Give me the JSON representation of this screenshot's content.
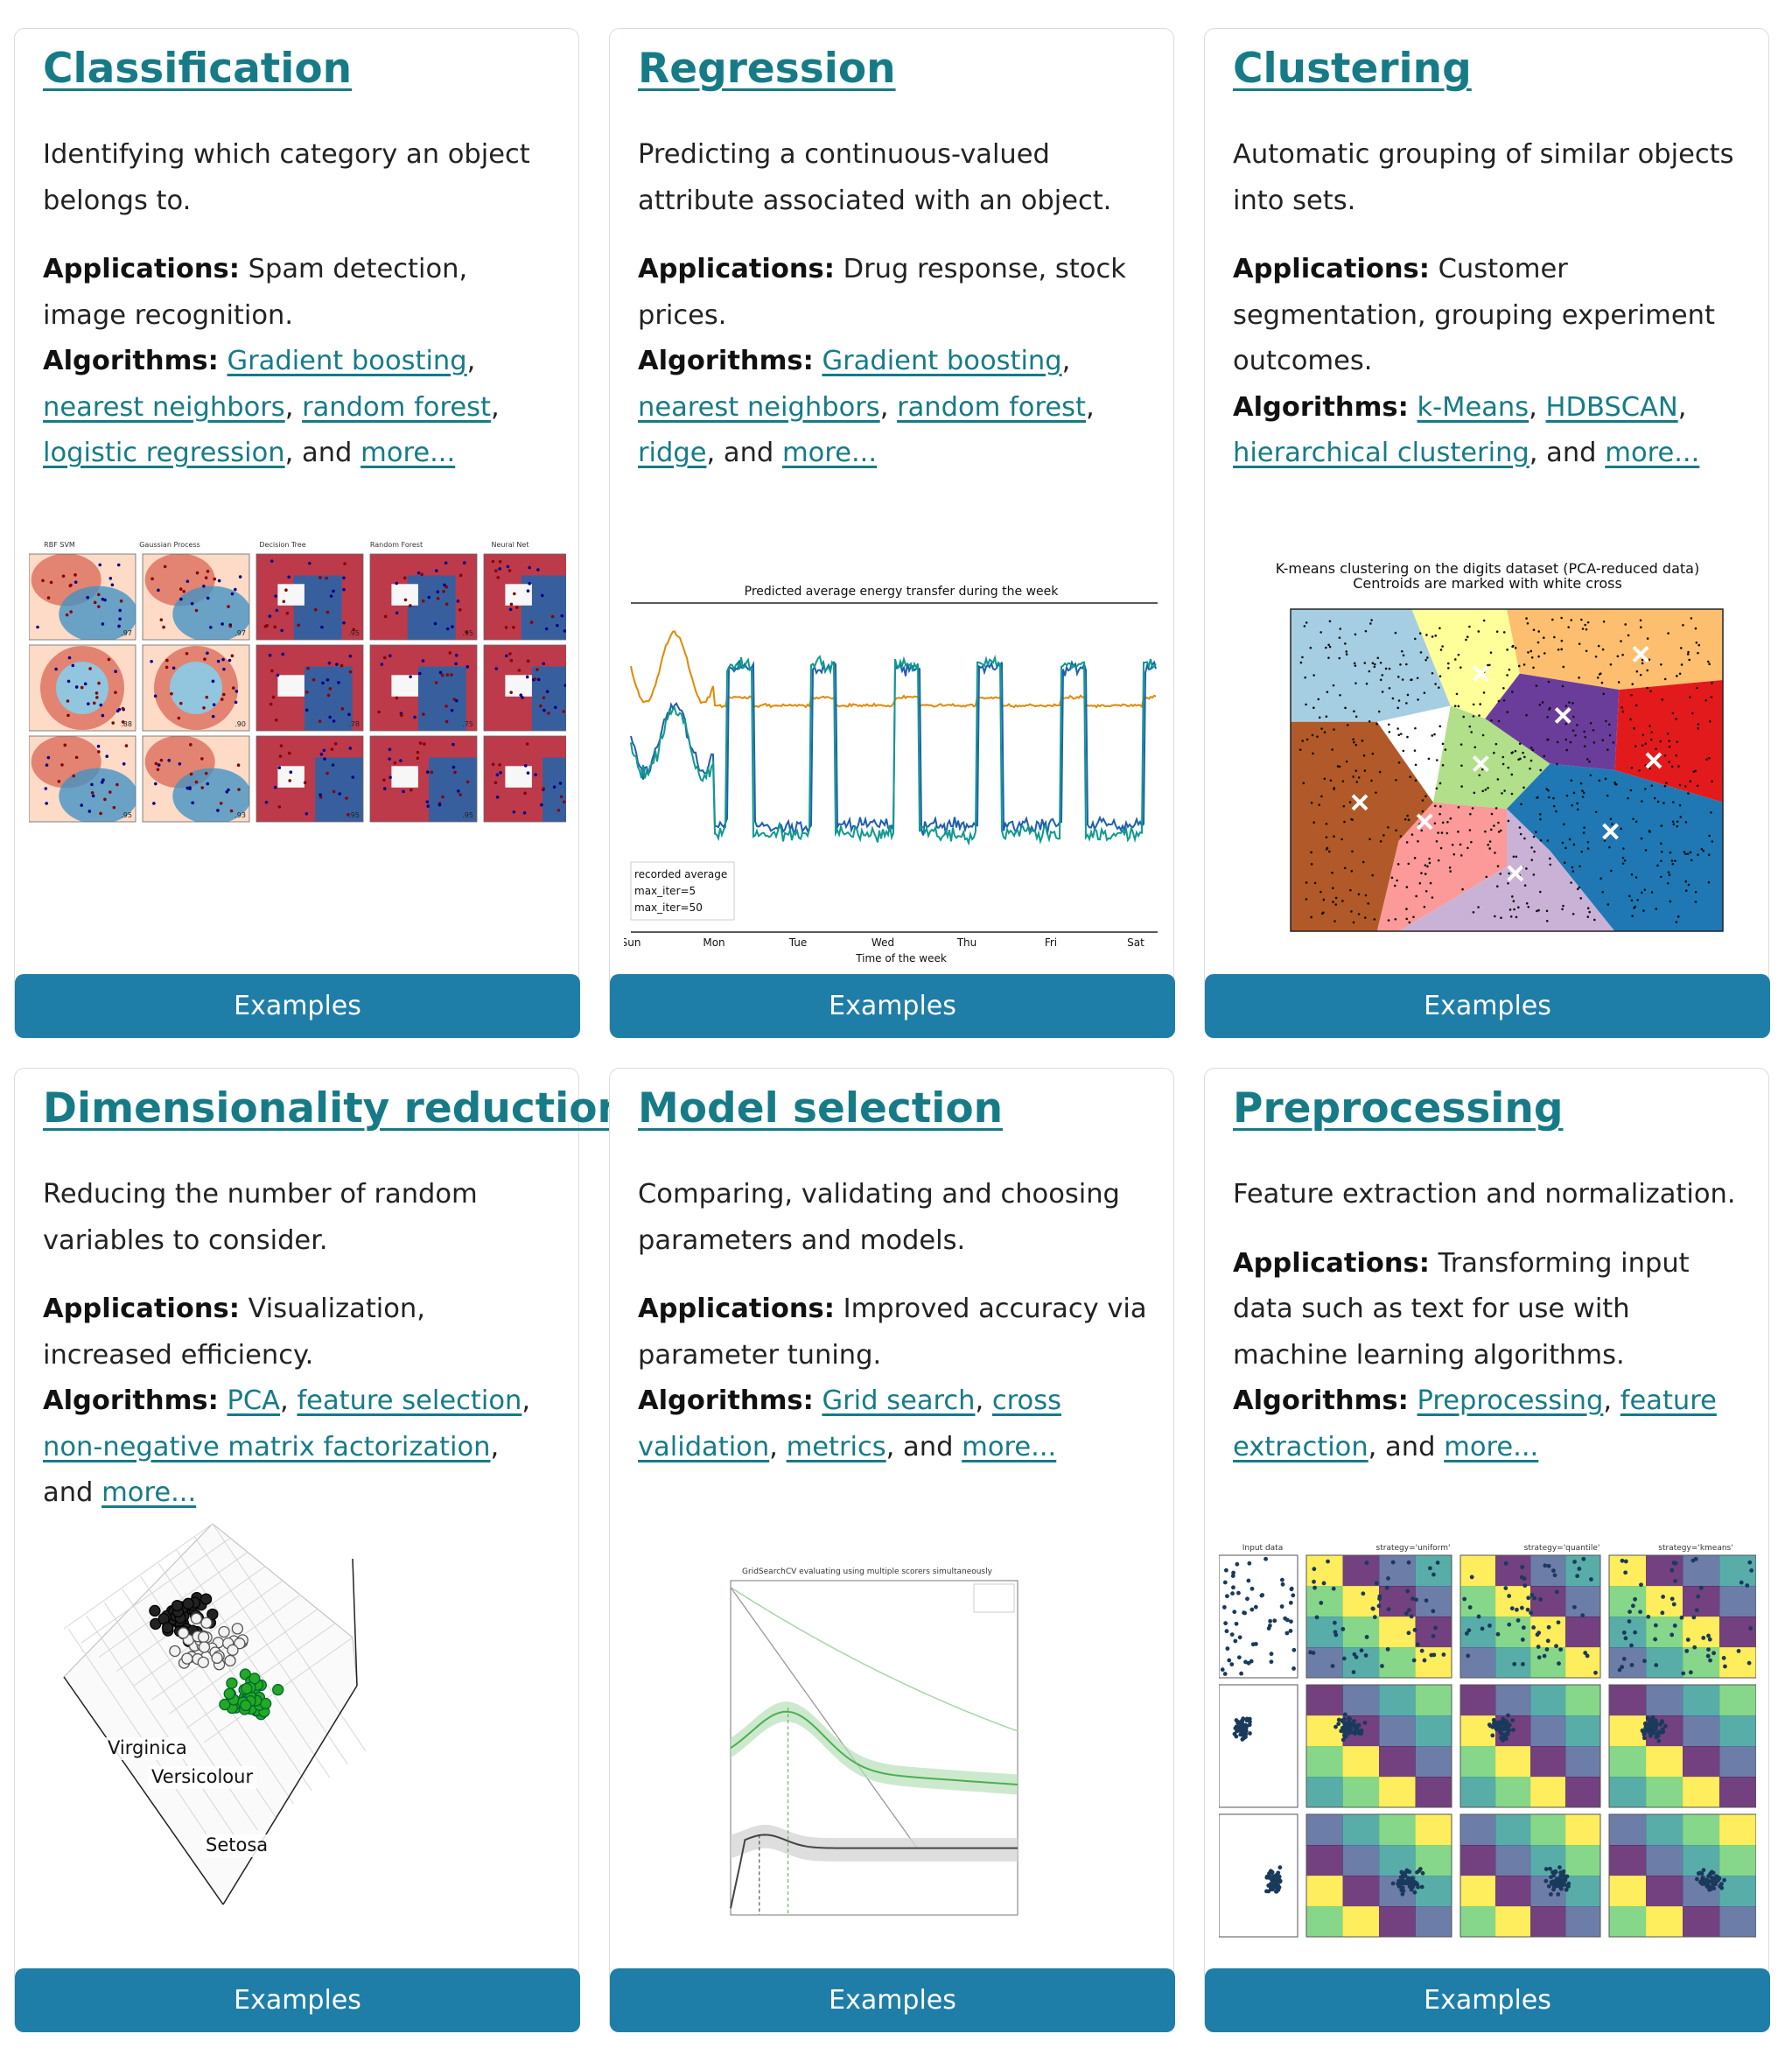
{
  "colors": {
    "link": "#167b86",
    "button": "#1f7ea8",
    "border": "#d9dcdf"
  },
  "cards": [
    {
      "title": "Classification",
      "description": "Identifying which category an object belongs to.",
      "applications_label": "Applications:",
      "applications": " Spam detection, image recognition.",
      "algorithms_label": "Algorithms:",
      "links": [
        "Gradient boosting",
        "nearest neighbors",
        "random forest",
        "logistic regression",
        "more..."
      ],
      "button": "Examples",
      "figure_titles": [
        "RBF SVM",
        "Gaussian Process",
        "Decision Tree",
        "Random Forest",
        "Neural Net"
      ],
      "figure_scores": [
        ".97",
        ".97",
        ".95",
        ".95",
        ".96",
        ".88",
        ".90",
        ".78",
        ".75",
        ".86",
        ".95",
        ".93",
        ".95",
        ".95",
        ".95"
      ]
    },
    {
      "title": "Regression",
      "description": "Predicting a continuous-valued attribute associated with an object.",
      "applications_label": "Applications:",
      "applications": " Drug response, stock prices.",
      "algorithms_label": "Algorithms:",
      "links": [
        "Gradient boosting",
        "nearest neighbors",
        "random forest",
        "ridge",
        "more..."
      ],
      "button": "Examples",
      "figure_title": "Predicted average energy transfer during the week",
      "figure_xlabel": "Time of the week",
      "figure_ticks": [
        "Sun",
        "Mon",
        "Tue",
        "Wed",
        "Thu",
        "Fri",
        "Sat"
      ],
      "figure_legend": [
        "recorded average",
        "max_iter=5",
        "max_iter=50"
      ]
    },
    {
      "title": "Clustering",
      "description": "Automatic grouping of similar objects into sets.",
      "applications_label": "Applications:",
      "applications": " Customer segmentation, grouping experiment outcomes.",
      "algorithms_label": "Algorithms:",
      "links": [
        "k-Means",
        "HDBSCAN",
        "hierarchical clustering",
        "more..."
      ],
      "button": "Examples",
      "figure_title_1": "K-means clustering on the digits dataset (PCA-reduced data)",
      "figure_title_2": "Centroids are marked with white cross"
    },
    {
      "title": "Dimensionality reduction",
      "description": "Reducing the number of random variables to consider.",
      "applications_label": "Applications:",
      "applications": " Visualization, increased efficiency.",
      "algorithms_label": "Algorithms:",
      "links": [
        "PCA",
        "feature selection",
        "non-negative matrix factorization",
        "more..."
      ],
      "button": "Examples",
      "figure_labels": [
        "Virginica",
        "Versicolour",
        "Setosa"
      ]
    },
    {
      "title": "Model selection",
      "description": "Comparing, validating and choosing parameters and models.",
      "applications_label": "Applications:",
      "applications": " Improved accuracy via parameter tuning.",
      "algorithms_label": "Algorithms:",
      "links": [
        "Grid search",
        "cross validation",
        "metrics",
        "more..."
      ],
      "button": "Examples",
      "figure_title": "GridSearchCV evaluating using multiple scorers simultaneously"
    },
    {
      "title": "Preprocessing",
      "description": "Feature extraction and normalization.",
      "applications_label": "Applications:",
      "applications": " Transforming input data such as text for use with machine learning algorithms.",
      "algorithms_label": "Algorithms:",
      "links": [
        "Preprocessing",
        "feature extraction",
        "more..."
      ],
      "button": "Examples",
      "figure_titles": [
        "Input data",
        "strategy='uniform'",
        "strategy='quantile'",
        "strategy='kmeans'"
      ]
    }
  ]
}
